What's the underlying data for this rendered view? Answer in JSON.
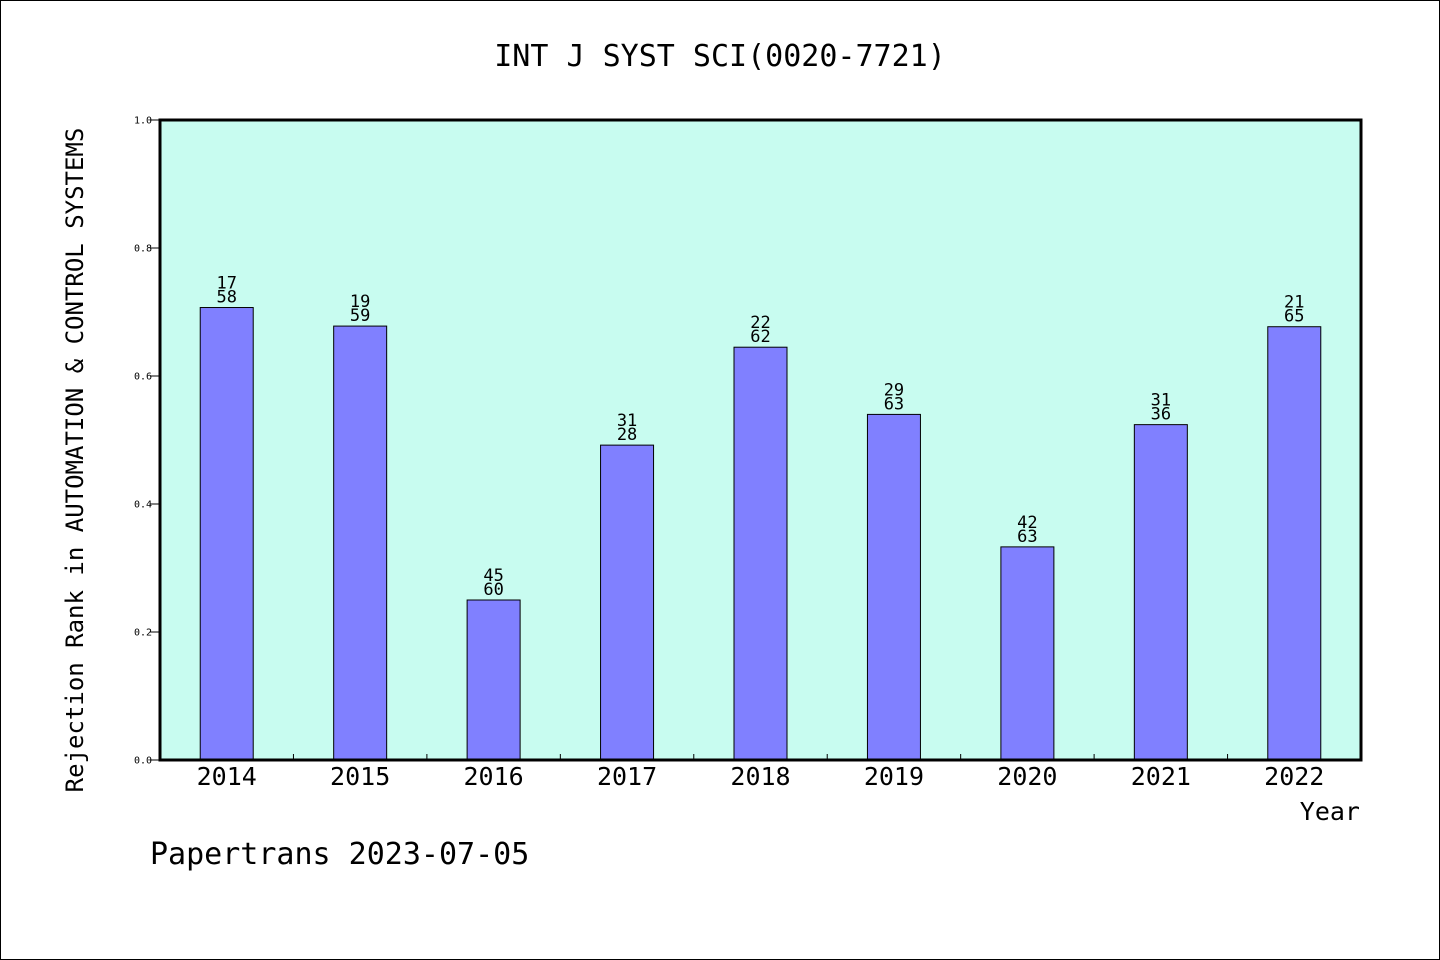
{
  "footer": "Papertrans 2023-07-05",
  "colors": {
    "plot_background": "#c8fcf0",
    "bar_fill": "#8080ff",
    "bar_stroke": "#000000",
    "axis": "#000000"
  },
  "chart_data": {
    "type": "bar",
    "title": "INT J SYST SCI(0020-7721)",
    "xlabel": "Year",
    "ylabel": "Rejection Rank in AUTOMATION & CONTROL SYSTEMS",
    "ylim": [
      0,
      1.0
    ],
    "yticks": [
      "0.0",
      "0.2",
      "0.4",
      "0.6",
      "0.8",
      "1.0"
    ],
    "grid": false,
    "legend": "none",
    "categories": [
      "2014",
      "2015",
      "2016",
      "2017",
      "2018",
      "2019",
      "2020",
      "2021",
      "2022"
    ],
    "values": [
      0.707,
      0.678,
      0.25,
      0.492,
      0.645,
      0.54,
      0.333,
      0.524,
      0.677
    ],
    "labels_top": [
      "17",
      "19",
      "45",
      "31",
      "22",
      "29",
      "42",
      "31",
      "21"
    ],
    "labels_bottom": [
      "58",
      "59",
      "60",
      "28",
      "62",
      "63",
      "63",
      "36",
      "65"
    ]
  }
}
